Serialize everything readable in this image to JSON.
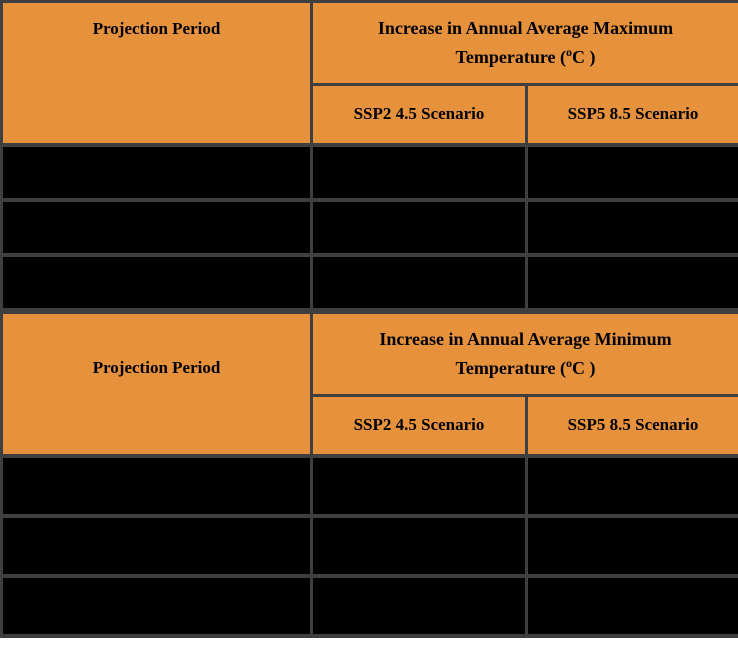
{
  "colors": {
    "header_bg": "#E6913C",
    "row_bg": "#000000",
    "border": "#3F3F3F",
    "text": "#000000",
    "page_bg": "#FFFFFF"
  },
  "table": {
    "sections": [
      {
        "projection_header": "Projection Period",
        "group_title_line1": "Increase in Annual Average Maximum",
        "group_title_line2_prefix": "Temperature (",
        "group_title_degree": "o",
        "group_title_line2_suffix": "C )",
        "scenario_headers": [
          "SSP2 4.5 Scenario",
          "SSP5 8.5 Scenario"
        ],
        "data_rows": [
          [
            "",
            "",
            ""
          ],
          [
            "",
            "",
            ""
          ],
          [
            "",
            "",
            ""
          ]
        ]
      },
      {
        "projection_header": "Projection Period",
        "group_title_line1": "Increase in Annual Average Minimum",
        "group_title_line2_prefix": "Temperature (",
        "group_title_degree": "o",
        "group_title_line2_suffix": "C )",
        "scenario_headers": [
          "SSP2 4.5 Scenario",
          "SSP5 8.5 Scenario"
        ],
        "data_rows": [
          [
            "",
            "",
            ""
          ],
          [
            "",
            "",
            ""
          ],
          [
            "",
            "",
            ""
          ]
        ]
      }
    ]
  }
}
